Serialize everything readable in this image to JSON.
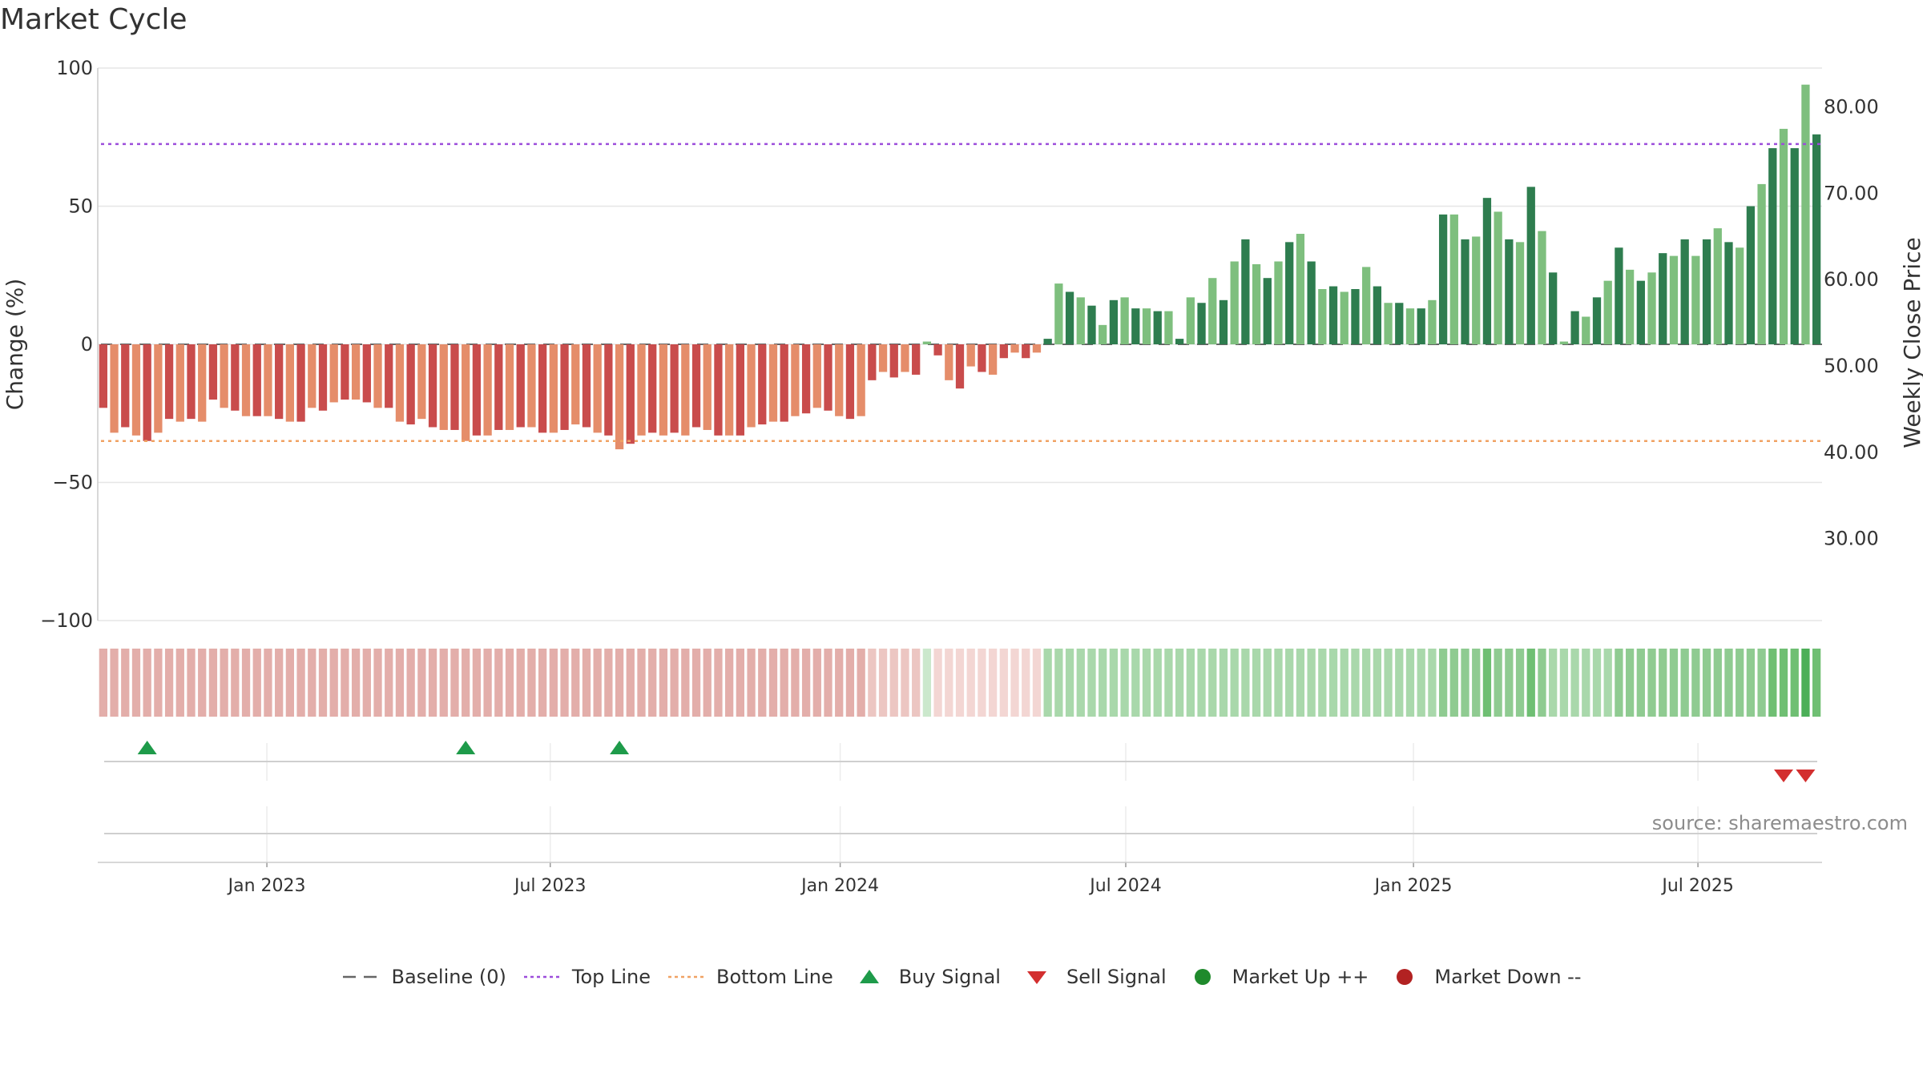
{
  "title": "Market Cycle",
  "source": "source: sharemaestro.com",
  "colors": {
    "neg_dark": "#c94c4c",
    "neg_light": "#e58d6a",
    "pos_dark": "#2e7d4f",
    "pos_light": "#7ebf7e",
    "top_line": "#9c4ddb",
    "bottom_line": "#f0a263",
    "baseline": "#666666",
    "buy": "#1e9b4a",
    "sell": "#d32f2f",
    "market_up": "#1f8a2c",
    "market_down": "#b22222",
    "grid": "#e6e6e6",
    "axis_text": "#333333"
  },
  "legend": [
    {
      "label": "Baseline (0)",
      "symbol": "dash",
      "color": "#666666"
    },
    {
      "label": "Top Line",
      "symbol": "dotted",
      "color": "#9c4ddb"
    },
    {
      "label": "Bottom Line",
      "symbol": "dotted",
      "color": "#f0a263"
    },
    {
      "label": "Buy Signal",
      "symbol": "triangle-up",
      "color": "#1e9b4a"
    },
    {
      "label": "Sell Signal",
      "symbol": "triangle-down",
      "color": "#d32f2f"
    },
    {
      "label": "Market Up ++",
      "symbol": "circle",
      "color": "#1f8a2c"
    },
    {
      "label": "Market Down --",
      "symbol": "circle",
      "color": "#b22222"
    }
  ],
  "chart_data": {
    "type": "bar",
    "title": "Market Cycle",
    "ylabel": "Change (%)",
    "y2label": "Weekly Close Price",
    "ylim": [
      -100,
      100
    ],
    "y_ticks": [
      100,
      50,
      0,
      -50,
      -100
    ],
    "y_tick_labels": [
      "100",
      "50",
      "0",
      "−50",
      "−100"
    ],
    "y2_ticks": [
      80,
      70,
      60,
      50,
      40,
      30
    ],
    "y2_tick_labels": [
      "80.00",
      "70.00",
      "60.00",
      "50.00",
      "40.00",
      "30.00"
    ],
    "y2lim": [
      20.5,
      84.5
    ],
    "x_start_week": "2022-09-29",
    "x_ticks": [
      {
        "label": "Jan 2023",
        "week": 14.9
      },
      {
        "label": "Jul 2023",
        "week": 40.7
      },
      {
        "label": "Jan 2024",
        "week": 67.1
      },
      {
        "label": "Jul 2024",
        "week": 93.1
      },
      {
        "label": "Jan 2025",
        "week": 119.3
      },
      {
        "label": "Jul 2025",
        "week": 145.2
      }
    ],
    "top_line": 72.5,
    "bottom_line": -35,
    "baseline": 0,
    "series": [
      {
        "name": "Change (%)",
        "values": [
          -23,
          -32,
          -30,
          -33,
          -35,
          -32,
          -27,
          -28,
          -27,
          -28,
          -20,
          -23,
          -24,
          -26,
          -26,
          -26,
          -27,
          -28,
          -28,
          -23,
          -24,
          -21,
          -20,
          -20,
          -21,
          -23,
          -23,
          -28,
          -29,
          -27,
          -30,
          -31,
          -31,
          -35,
          -33,
          -33,
          -31,
          -31,
          -30,
          -30,
          -32,
          -32,
          -31,
          -29,
          -30,
          -32,
          -33,
          -38,
          -36,
          -33,
          -32,
          -33,
          -32,
          -33,
          -30,
          -31,
          -33,
          -33,
          -33,
          -30,
          -29,
          -28,
          -28,
          -26,
          -25,
          -23,
          -24,
          -26,
          -27,
          -26,
          -13,
          -10,
          -12,
          -10,
          -11,
          1,
          -4,
          -13,
          -16,
          -8,
          -10,
          -11,
          -5,
          -3,
          -5,
          -3,
          2,
          22,
          19,
          17,
          14,
          7,
          16,
          17,
          13,
          13,
          12,
          12,
          2,
          17,
          15,
          24,
          16,
          30,
          38,
          29,
          24,
          30,
          37,
          40,
          30,
          20,
          21,
          19,
          20,
          28,
          21,
          15,
          15,
          13,
          13,
          16,
          47,
          47,
          38,
          39,
          53,
          48,
          38,
          37,
          57,
          41,
          26,
          1,
          12,
          10,
          17,
          23,
          35,
          27,
          23,
          26,
          33,
          32,
          38,
          32,
          38,
          42,
          37,
          35,
          50,
          58,
          71,
          78,
          71,
          94,
          76
        ],
        "strength": [
          2,
          2,
          2,
          2,
          2,
          2,
          2,
          2,
          2,
          2,
          2,
          2,
          2,
          2,
          2,
          2,
          2,
          2,
          2,
          2,
          2,
          2,
          2,
          2,
          2,
          2,
          2,
          2,
          2,
          2,
          2,
          2,
          2,
          2,
          2,
          2,
          2,
          2,
          2,
          2,
          2,
          2,
          2,
          2,
          2,
          2,
          2,
          2,
          2,
          2,
          2,
          2,
          2,
          2,
          2,
          2,
          2,
          2,
          2,
          2,
          2,
          2,
          2,
          2,
          2,
          2,
          2,
          2,
          2,
          2,
          1,
          1,
          1,
          1,
          1,
          0,
          0,
          0,
          0,
          0,
          0,
          0,
          0,
          0,
          0,
          0,
          1,
          1,
          1,
          1,
          1,
          1,
          1,
          1,
          1,
          1,
          1,
          1,
          1,
          1,
          1,
          1,
          1,
          1,
          1,
          1,
          1,
          1,
          1,
          1,
          1,
          1,
          1,
          1,
          1,
          1,
          1,
          1,
          1,
          1,
          1,
          1,
          2,
          2,
          2,
          2,
          3,
          2,
          2,
          2,
          3,
          2,
          1,
          1,
          1,
          1,
          1,
          1,
          2,
          2,
          2,
          2,
          2,
          2,
          2,
          2,
          2,
          2,
          2,
          2,
          2,
          2,
          3,
          3,
          3,
          4,
          3
        ]
      }
    ],
    "strength_colors": {
      "neg": [
        "#f3d6d3",
        "#ecc6c2",
        "#e3aeaa"
      ],
      "pos": [
        "#cbe8cc",
        "#a9d8ab",
        "#8fcb91",
        "#6fbf73",
        "#4caf58"
      ]
    },
    "buy_signals": [
      4,
      33,
      47
    ],
    "sell_signals": [
      153,
      155
    ],
    "panels": [
      "Change (%) bars",
      "Cycle strength band",
      "Signals",
      "Market state"
    ]
  }
}
